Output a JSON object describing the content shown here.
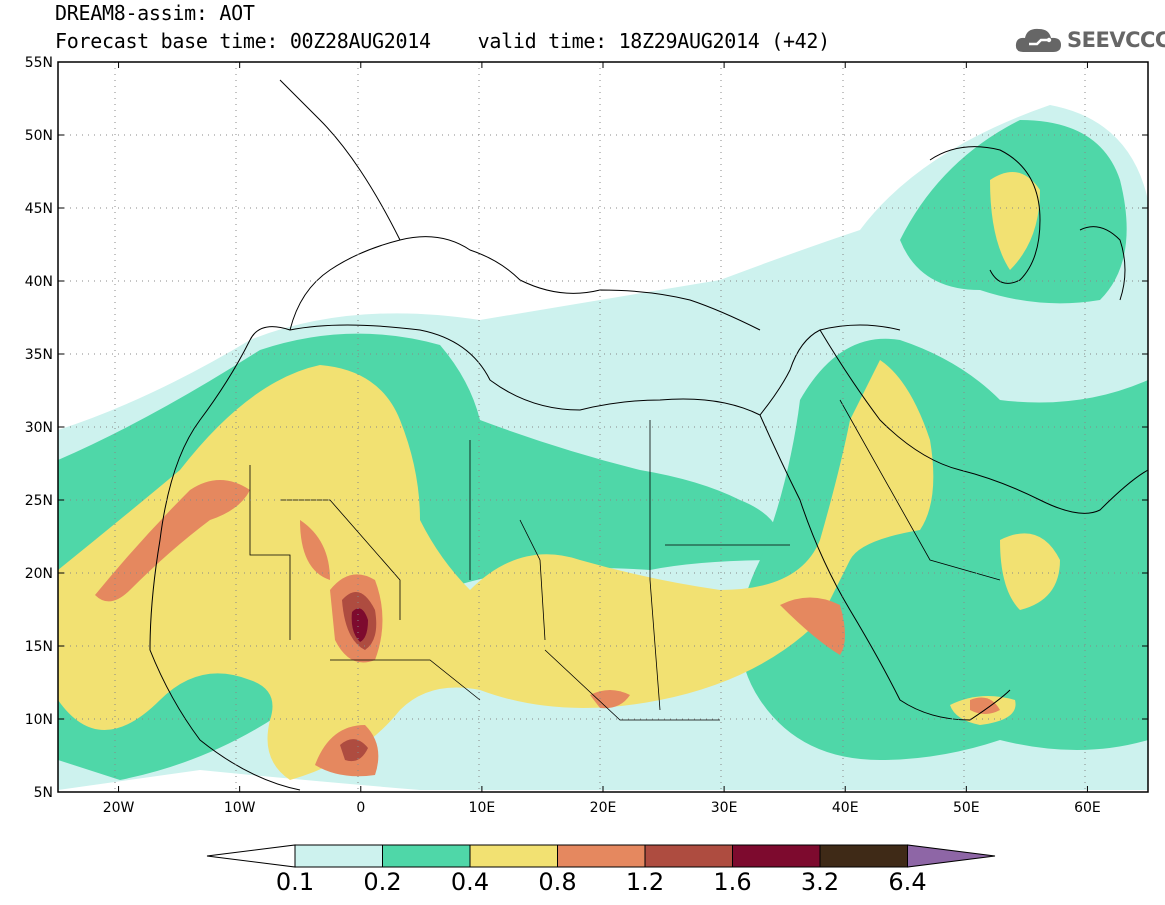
{
  "header": {
    "line1": "DREAM8-assim: AOT",
    "line2": "Forecast base time: 00Z28AUG2014    valid time: 18Z29AUG2014 (+42)"
  },
  "logo": {
    "text": "SEEVCCC",
    "icon": "cloud-icon",
    "color": "#666666"
  },
  "map": {
    "lon_range": [
      -25,
      65
    ],
    "lat_range": [
      5,
      55
    ],
    "lon_ticks": [
      "20W",
      "10W",
      "0",
      "10E",
      "20E",
      "30E",
      "40E",
      "50E",
      "60E"
    ],
    "lat_ticks": [
      "5N",
      "10N",
      "15N",
      "20N",
      "25N",
      "30N",
      "35N",
      "40N",
      "45N",
      "50N",
      "55N"
    ],
    "grid": "dotted"
  },
  "colorbar": {
    "labels": [
      "0.1",
      "0.2",
      "0.4",
      "0.8",
      "1.2",
      "1.6",
      "3.2",
      "6.4"
    ],
    "colors": [
      "#cdf2ee",
      "#4fd7a8",
      "#f2e172",
      "#e5885f",
      "#ae4c40",
      "#7d0a2e",
      "#3f2a17",
      "#8e66a6"
    ],
    "left_end_color": "#ffffff"
  }
}
